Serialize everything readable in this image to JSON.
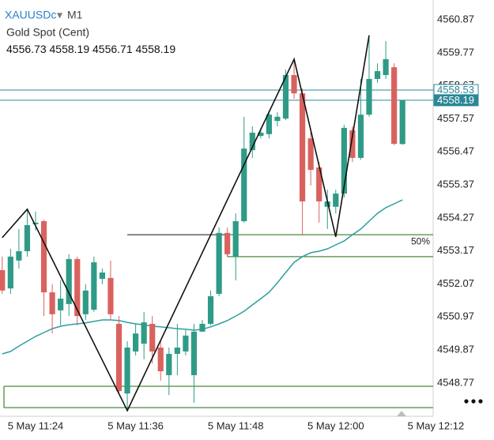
{
  "header": {
    "symbol": "XAUUSDc",
    "timeframe": "M1",
    "description": "Gold Spot (Cent)",
    "ohlc": [
      4556.73,
      4558.19,
      4556.71,
      4558.19
    ]
  },
  "chart_data": {
    "type": "candlestick",
    "categories": [
      null,
      null,
      null,
      null,
      "5 May 11:24",
      null,
      null,
      null,
      null,
      null,
      null,
      null,
      null,
      null,
      null,
      null,
      "5 May 11:36",
      null,
      null,
      null,
      null,
      null,
      null,
      null,
      null,
      null,
      null,
      null,
      "5 May 11:48",
      null,
      null,
      null,
      null,
      null,
      null,
      null,
      null,
      null,
      null,
      null,
      "5 May 12:00",
      null,
      null,
      null,
      null,
      null,
      null,
      null,
      null,
      null,
      null,
      null,
      "5 May 12:12"
    ],
    "open": [
      4552.53,
      4551.92,
      4552.85,
      4553.16,
      4554.06,
      4554.16,
      4551.79,
      4551.19,
      4551.4,
      4552.9,
      4551.06,
      4551.21,
      4552.24,
      4552.27,
      4550.74,
      4548.42,
      4549.82,
      4550.08,
      4550.74,
      4549.95,
      4549.03,
      4549.74,
      4549.82,
      4549.03,
      4550.48,
      4550.74,
      4551.74,
      4553.77,
      4552.98,
      4554.16,
      4556.53,
      4557.0,
      4557.06,
      4557.5,
      4557.58,
      4559.03,
      4558.42,
      4556.92,
      4555.95,
      4554.64,
      4554.64,
      4555.08,
      4557.19,
      4556.27,
      4557.71,
      4558.9,
      4559.03,
      4559.29,
      4556.73,
      null,
      null,
      null,
      null
    ],
    "high": [
      4552.98,
      4553.24,
      4553.9,
      4554.56,
      4554.48,
      4554.21,
      4552.06,
      4552.19,
      4553.06,
      4552.98,
      4552.06,
      4552.98,
      4552.58,
      4552.85,
      4551.0,
      4550.16,
      4550.74,
      4551.14,
      4551.0,
      4550.16,
      4549.95,
      4550.74,
      4550.53,
      4550.74,
      4550.87,
      4551.85,
      4553.95,
      4553.95,
      4554.42,
      4557.64,
      4557.32,
      4557.27,
      4557.85,
      4557.79,
      4559.21,
      4559.48,
      4558.58,
      4557.19,
      4556.13,
      4555.21,
      4555.21,
      4557.37,
      4557.32,
      4558.9,
      4560.35,
      4559.42,
      4560.16,
      4559.42,
      4558.19,
      null,
      null,
      null,
      null
    ],
    "low": [
      4551.74,
      4551.74,
      4552.58,
      4552.98,
      4553.85,
      4551.0,
      4550.42,
      4550.69,
      4551.0,
      4550.69,
      4550.87,
      4551.14,
      4552.06,
      4550.87,
      4548.42,
      4547.85,
      4549.69,
      4549.56,
      4549.42,
      4548.85,
      4548.37,
      4549.03,
      4549.69,
      4548.11,
      4550.48,
      4550.69,
      4551.66,
      4552.98,
      4552.19,
      4554.11,
      4556.27,
      4556.92,
      4556.92,
      4557.32,
      4557.53,
      4558.24,
      4553.69,
      4555.35,
      4554.11,
      4553.9,
      4554.42,
      4554.95,
      4556.13,
      4556.21,
      4557.64,
      4558.77,
      4558.9,
      4556.69,
      4556.71,
      null,
      null,
      null,
      null
    ],
    "close": [
      4551.85,
      4552.98,
      4553.16,
      4554.03,
      4554.11,
      4551.79,
      4551.06,
      4551.58,
      4552.9,
      4551.0,
      4551.85,
      4552.79,
      4552.45,
      4551.06,
      4548.5,
      4549.95,
      4550.42,
      4550.79,
      4549.82,
      4549.16,
      4549.74,
      4549.95,
      4550.35,
      4550.48,
      4550.74,
      4551.66,
      4553.77,
      4553.06,
      4554.16,
      4556.58,
      4557.11,
      4557.11,
      4557.71,
      4557.64,
      4559.03,
      4558.42,
      4554.82,
      4555.87,
      4554.82,
      4554.82,
      4555.08,
      4557.27,
      4556.27,
      4557.71,
      4558.9,
      4559.16,
      4559.56,
      4556.74,
      4558.19,
      null,
      null,
      null,
      null
    ],
    "up_color": "#2f9b86",
    "down_color": "#d9625f",
    "ylim": [
      4547.66,
      4561.53
    ],
    "yticks": [
      4560.87,
      4559.77,
      4558.67,
      4557.57,
      4556.47,
      4555.37,
      4554.27,
      4553.17,
      4552.07,
      4550.97,
      4549.87,
      4548.77
    ],
    "moving_average": {
      "color": "#2c9ea0",
      "values": [
        4549.74,
        4549.82,
        4550.0,
        4550.16,
        4550.32,
        4550.45,
        4550.58,
        4550.66,
        4550.71,
        4550.74,
        4550.77,
        4550.82,
        4550.87,
        4550.87,
        4550.85,
        4550.79,
        4550.74,
        4550.71,
        4550.66,
        4550.64,
        4550.61,
        4550.58,
        4550.56,
        4550.53,
        4550.56,
        4550.64,
        4550.74,
        4550.85,
        4551.0,
        4551.16,
        4551.37,
        4551.58,
        4551.79,
        4552.11,
        4552.45,
        4552.79,
        4552.98,
        4553.11,
        4553.16,
        4553.24,
        4553.37,
        4553.5,
        4553.71,
        4553.9,
        4554.16,
        4554.42,
        4554.61,
        4554.74,
        4554.87,
        null,
        null,
        null,
        null
      ]
    },
    "zigzag": {
      "color": "#111111",
      "x": [
        0,
        3,
        15,
        35,
        40,
        44
      ],
      "values": [
        4553.61,
        4554.56,
        4547.85,
        4559.56,
        4553.64,
        4560.35
      ]
    },
    "levels": [
      {
        "value": 4558.53,
        "color": "#2a8796",
        "style": "outline"
      },
      {
        "value": 4558.19,
        "color": "#2a8796",
        "style": "filled"
      }
    ],
    "fib": {
      "color": "#4b8a3e",
      "x_start": 27,
      "ray_start": 15,
      "levels": [
        {
          "value": 4553.71,
          "label": "50%"
        },
        {
          "value": 4552.98
        }
      ]
    },
    "rectangle": {
      "color": "#4b8a3e",
      "values": [
        4548.66,
        4547.95
      ]
    }
  }
}
